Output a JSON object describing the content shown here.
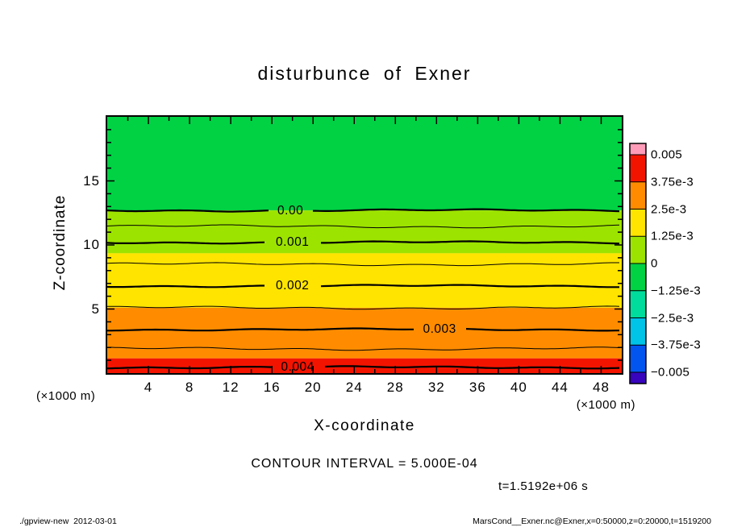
{
  "title": "disturbunce of Exner",
  "axes": {
    "x": {
      "label": "X-coordinate",
      "unit": "(×1000 m)",
      "range": [
        0,
        50
      ],
      "major_ticks": [
        4,
        8,
        12,
        16,
        20,
        24,
        28,
        32,
        36,
        40,
        44,
        48
      ],
      "minor_ticks": [
        2,
        6,
        10,
        14,
        18,
        22,
        26,
        30,
        34,
        38,
        42,
        46
      ]
    },
    "z": {
      "label": "Z-coordinate",
      "unit": "(×1000 m)",
      "range": [
        0,
        20
      ],
      "major_ticks": [
        5,
        10,
        15
      ],
      "minor_ticks": [
        1,
        2,
        3,
        4,
        6,
        7,
        8,
        9,
        11,
        12,
        13,
        14,
        16,
        17,
        18,
        19
      ]
    }
  },
  "chart_data": {
    "type": "heatmap",
    "title": "disturbunce of Exner",
    "xlabel": "X-coordinate (×1000 m)",
    "ylabel": "Z-coordinate (×1000 m)",
    "xlim": [
      0,
      50
    ],
    "ylim": [
      0,
      20
    ],
    "contour_interval": 0.0005,
    "contours": [
      {
        "value": 0.0,
        "z": 12.7,
        "thick": true,
        "label": "0.00",
        "label_x": 17.8
      },
      {
        "value": 0.0005,
        "z": 11.45,
        "thick": false
      },
      {
        "value": 0.001,
        "z": 10.2,
        "thick": true,
        "label": "0.001",
        "label_x": 18.0
      },
      {
        "value": 0.0015,
        "z": 8.5,
        "thick": false
      },
      {
        "value": 0.002,
        "z": 6.8,
        "thick": true,
        "label": "0.002",
        "label_x": 18.0
      },
      {
        "value": 0.0025,
        "z": 5.1,
        "thick": false
      },
      {
        "value": 0.003,
        "z": 3.4,
        "thick": true,
        "label": "0.003",
        "label_x": 32.3
      },
      {
        "value": 0.0035,
        "z": 1.9,
        "thick": false
      },
      {
        "value": 0.004,
        "z": 0.45,
        "thick": true,
        "label": "0.004",
        "label_x": 18.5
      }
    ],
    "fill_bands": [
      {
        "level": "-1.25e-3 to 0",
        "color": "#00d244",
        "z_top": 20.0,
        "z_bottom": 12.7
      },
      {
        "level": "0 to 1.25e-3",
        "color": "#9de300",
        "z_top": 12.7,
        "z_bottom": 9.35
      },
      {
        "level": "1.25e-3 to 2.5e-3",
        "color": "#ffe400",
        "z_top": 9.35,
        "z_bottom": 5.1
      },
      {
        "level": "2.5e-3 to 3.75e-3",
        "color": "#ff8c00",
        "z_top": 5.1,
        "z_bottom": 1.15
      },
      {
        "level": "3.75e-3 to 5e-3",
        "color": "#f31400",
        "z_top": 1.15,
        "z_bottom": 0.0
      }
    ]
  },
  "colorbar": {
    "labels": [
      "0.005",
      "3.75e-3",
      "2.5e-3",
      "1.25e-3",
      "0",
      "−1.25e-3",
      "−2.5e-3",
      "−3.75e-3",
      "−0.005"
    ],
    "cells": [
      "#f31400",
      "#ff8c00",
      "#ffe400",
      "#9de300",
      "#00d244",
      "#00dc9b",
      "#00c3e8",
      "#0355f0"
    ],
    "cap_top": "#ff9cb9",
    "cap_bottom": "#3804bd"
  },
  "annotations": {
    "contour_interval": "CONTOUR INTERVAL = 5.000E-04",
    "time": "t=1.5192e+06 s"
  },
  "footer": {
    "left": "./gpview-new  2012-03-01",
    "right": "MarsCond__Exner.nc@Exner,x=0:50000,z=0:20000,t=1519200"
  }
}
